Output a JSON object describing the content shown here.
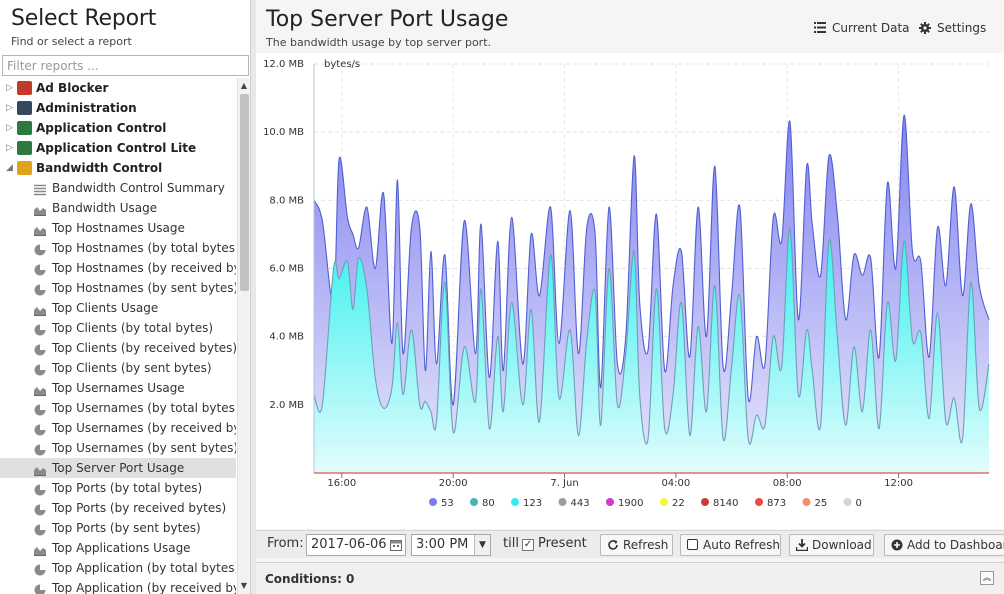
{
  "left": {
    "title": "Select Report",
    "subtitle": "Find or select a report",
    "filter_placeholder": "Filter reports ...",
    "categories": [
      {
        "label": "Ad Blocker",
        "icon": "ad-blocker-icon",
        "expanded": false
      },
      {
        "label": "Administration",
        "icon": "administration-icon",
        "expanded": false
      },
      {
        "label": "Application Control",
        "icon": "application-control-icon",
        "expanded": false
      },
      {
        "label": "Application Control Lite",
        "icon": "application-control-lite-icon",
        "expanded": false
      },
      {
        "label": "Bandwidth Control",
        "icon": "bandwidth-control-icon",
        "expanded": true
      }
    ],
    "reports": [
      {
        "label": "Bandwidth Control Summary",
        "icon": "list-icon"
      },
      {
        "label": "Bandwidth Usage",
        "icon": "area-chart-icon"
      },
      {
        "label": "Top Hostnames Usage",
        "icon": "area-chart-icon"
      },
      {
        "label": "Top Hostnames (by total bytes)",
        "icon": "pie-chart-icon"
      },
      {
        "label": "Top Hostnames (by received byt...",
        "icon": "pie-chart-icon"
      },
      {
        "label": "Top Hostnames (by sent bytes)",
        "icon": "pie-chart-icon"
      },
      {
        "label": "Top Clients Usage",
        "icon": "area-chart-icon"
      },
      {
        "label": "Top Clients (by total bytes)",
        "icon": "pie-chart-icon"
      },
      {
        "label": "Top Clients (by received bytes)",
        "icon": "pie-chart-icon"
      },
      {
        "label": "Top Clients (by sent bytes)",
        "icon": "pie-chart-icon"
      },
      {
        "label": "Top Usernames Usage",
        "icon": "area-chart-icon"
      },
      {
        "label": "Top Usernames (by total bytes)",
        "icon": "pie-chart-icon"
      },
      {
        "label": "Top Usernames (by received bytes)",
        "icon": "pie-chart-icon"
      },
      {
        "label": "Top Usernames (by sent bytes)",
        "icon": "pie-chart-icon"
      },
      {
        "label": "Top Server Port Usage",
        "icon": "area-chart-icon",
        "selected": true
      },
      {
        "label": "Top Ports (by total bytes)",
        "icon": "pie-chart-icon"
      },
      {
        "label": "Top Ports (by received bytes)",
        "icon": "pie-chart-icon"
      },
      {
        "label": "Top Ports (by sent bytes)",
        "icon": "pie-chart-icon"
      },
      {
        "label": "Top Applications Usage",
        "icon": "area-chart-icon"
      },
      {
        "label": "Top Application (by total bytes)",
        "icon": "pie-chart-icon"
      },
      {
        "label": "Top Application (by received bytes)",
        "icon": "pie-chart-icon"
      }
    ]
  },
  "report": {
    "title": "Top Server Port Usage",
    "subtitle": "The bandwidth usage by top server port.",
    "current_data_label": "Current Data",
    "settings_label": "Settings"
  },
  "toolbar": {
    "from_label": "From:",
    "from_date": "2017-06-06",
    "from_time": "3:00 PM",
    "till_label": "till",
    "present_label": "Present",
    "present_checked": true,
    "refresh_label": "Refresh",
    "auto_refresh_label": "Auto Refresh",
    "download_label": "Download",
    "add_dashboard_label": "Add to Dashboard"
  },
  "conditions": {
    "label": "Conditions: 0"
  },
  "chart_data": {
    "type": "area",
    "ylabel": "bytes/s",
    "y_ticks": [
      "2.0 MB",
      "4.0 MB",
      "6.0 MB",
      "8.0 MB",
      "10.0 MB",
      "12.0 MB"
    ],
    "ylim": [
      0,
      12.0
    ],
    "x_ticks": [
      "16:00",
      "20:00",
      "7. Jun",
      "04:00",
      "08:00",
      "12:00"
    ],
    "x_tick_hours": [
      16,
      20,
      24,
      28,
      32,
      36
    ],
    "xlim_hours": [
      15.0,
      39.25
    ],
    "legend": [
      {
        "name": "53",
        "color": "#7b7bed"
      },
      {
        "name": "80",
        "color": "#4bb3b3"
      },
      {
        "name": "123",
        "color": "#37ecec"
      },
      {
        "name": "443",
        "color": "#9e9e9e"
      },
      {
        "name": "1900",
        "color": "#c83ccf"
      },
      {
        "name": "22",
        "color": "#f6f63c"
      },
      {
        "name": "8140",
        "color": "#c83c3c"
      },
      {
        "name": "873",
        "color": "#f04848"
      },
      {
        "name": "25",
        "color": "#f0906c"
      },
      {
        "name": "0",
        "color": "#d4d4d4"
      }
    ],
    "series": [
      {
        "name": "53",
        "color": "#5a6ad8",
        "x": [
          15.0,
          15.3,
          15.7,
          15.9,
          16.2,
          16.4,
          16.6,
          16.9,
          17.2,
          17.5,
          17.8,
          18.0,
          18.2,
          18.5,
          18.8,
          19.0,
          19.2,
          19.4,
          19.7,
          20.0,
          20.4,
          20.8,
          21.0,
          21.3,
          21.6,
          21.8,
          22.1,
          22.5,
          22.8,
          23.1,
          23.5,
          23.8,
          24.2,
          24.5,
          24.8,
          25.1,
          25.3,
          25.6,
          25.9,
          26.2,
          26.5,
          26.7,
          27.0,
          27.3,
          27.6,
          27.9,
          28.2,
          28.5,
          28.8,
          29.1,
          29.4,
          29.7,
          30.0,
          30.3,
          30.6,
          30.9,
          31.2,
          31.5,
          31.8,
          32.1,
          32.4,
          32.7,
          32.9,
          33.2,
          33.5,
          33.8,
          34.1,
          34.4,
          34.7,
          35.0,
          35.3,
          35.6,
          35.9,
          36.2,
          36.5,
          36.8,
          37.1,
          37.4,
          37.7,
          38.0,
          38.3,
          38.6,
          38.9,
          39.25
        ],
        "y": [
          8.0,
          7.4,
          5.0,
          9.2,
          7.5,
          7.0,
          6.6,
          7.8,
          6.0,
          8.2,
          3.8,
          8.6,
          3.5,
          7.2,
          7.2,
          3.0,
          6.5,
          3.2,
          6.4,
          2.0,
          7.4,
          3.5,
          7.3,
          2.8,
          6.8,
          3.0,
          7.5,
          3.2,
          7.0,
          5.2,
          7.8,
          3.8,
          7.7,
          3.5,
          7.2,
          7.0,
          2.5,
          7.8,
          3.2,
          4.0,
          9.3,
          5.0,
          3.6,
          7.6,
          3.0,
          5.5,
          6.5,
          3.4,
          7.8,
          4.0,
          9.0,
          3.1,
          5.2,
          7.8,
          2.2,
          4.0,
          3.2,
          7.5,
          6.8,
          10.3,
          4.5,
          9.0,
          7.3,
          5.8,
          9.3,
          7.6,
          4.5,
          6.4,
          5.8,
          6.3,
          3.4,
          8.5,
          6.0,
          10.5,
          6.5,
          6.2,
          3.4,
          7.2,
          5.5,
          8.4,
          5.2,
          7.9,
          5.5,
          4.5
        ]
      },
      {
        "name": "123",
        "color": "#3be0e0",
        "x": [
          15.0,
          15.3,
          15.7,
          15.9,
          16.2,
          16.4,
          16.6,
          16.9,
          17.2,
          17.5,
          17.8,
          18.0,
          18.2,
          18.5,
          18.8,
          19.0,
          19.2,
          19.4,
          19.7,
          20.0,
          20.4,
          20.8,
          21.0,
          21.3,
          21.6,
          21.8,
          22.1,
          22.5,
          22.8,
          23.1,
          23.5,
          23.8,
          24.2,
          24.5,
          24.8,
          25.1,
          25.3,
          25.6,
          25.9,
          26.2,
          26.5,
          26.7,
          27.0,
          27.3,
          27.6,
          27.9,
          28.2,
          28.5,
          28.8,
          29.1,
          29.4,
          29.7,
          30.0,
          30.3,
          30.6,
          30.9,
          31.2,
          31.5,
          31.8,
          32.1,
          32.4,
          32.7,
          32.9,
          33.2,
          33.5,
          33.8,
          34.1,
          34.4,
          34.7,
          35.0,
          35.3,
          35.6,
          35.9,
          36.2,
          36.5,
          36.8,
          37.1,
          37.4,
          37.7,
          38.0,
          38.3,
          38.6,
          38.9,
          39.25
        ],
        "y": [
          2.3,
          2.0,
          6.0,
          5.7,
          6.2,
          4.8,
          6.3,
          5.4,
          2.8,
          1.9,
          2.5,
          4.4,
          2.3,
          4.2,
          2.0,
          2.1,
          1.8,
          1.5,
          5.6,
          1.2,
          3.7,
          2.1,
          5.4,
          1.3,
          4.0,
          1.8,
          5.0,
          2.0,
          4.8,
          1.5,
          6.4,
          2.2,
          4.2,
          1.1,
          3.9,
          5.3,
          1.4,
          6.0,
          2.0,
          3.5,
          6.5,
          2.3,
          1.0,
          5.4,
          1.3,
          2.3,
          5.0,
          1.1,
          4.3,
          1.8,
          5.5,
          1.0,
          3.1,
          5.2,
          1.0,
          1.7,
          1.4,
          4.0,
          3.1,
          7.2,
          2.3,
          4.2,
          3.0,
          1.4,
          6.8,
          4.0,
          1.4,
          3.7,
          1.8,
          4.2,
          1.3,
          5.0,
          3.3,
          6.8,
          3.9,
          4.1,
          1.6,
          4.7,
          1.5,
          2.2,
          1.0,
          5.6,
          1.9,
          3.2
        ]
      }
    ]
  }
}
